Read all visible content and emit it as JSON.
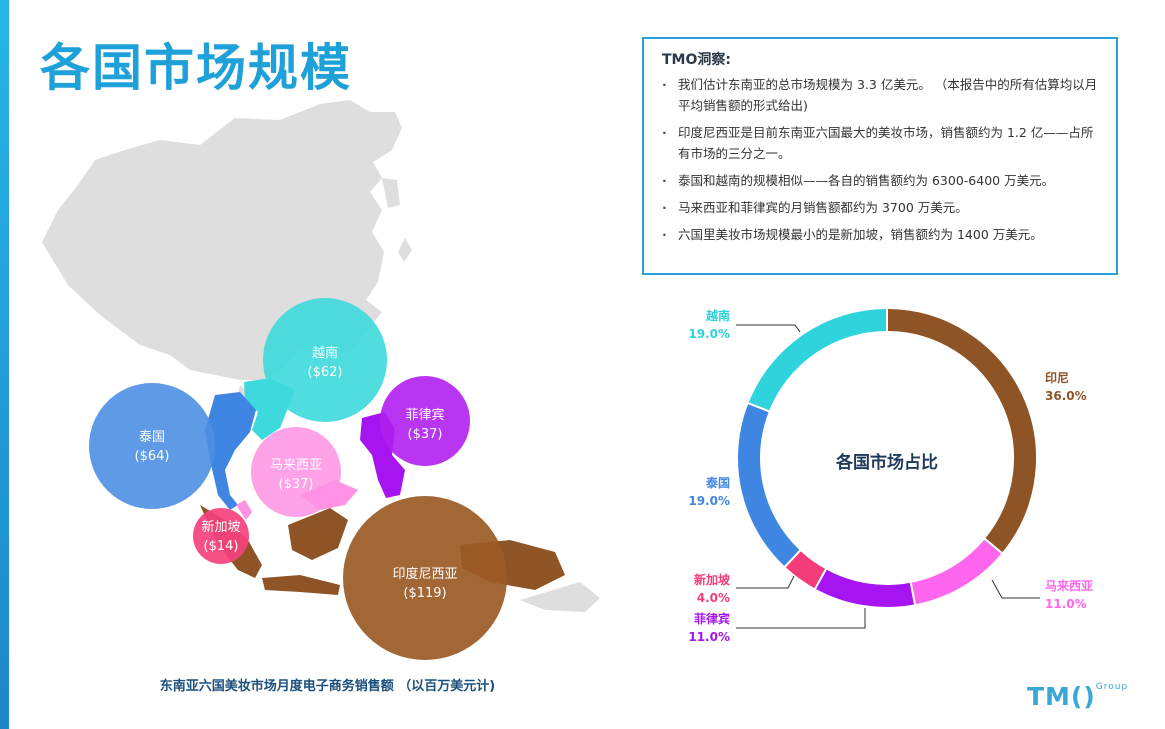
{
  "page": {
    "title": "各国市场规模"
  },
  "map": {
    "caption": "东南亚六国美妆市场月度电子商务销售额 （以百万美元计)",
    "bubbles": [
      {
        "name": "越南",
        "value": "($62)",
        "color": "#3dd9dc"
      },
      {
        "name": "泰国",
        "value": "($64)",
        "color": "#4c8fe3"
      },
      {
        "name": "菲律宾",
        "value": "($37)",
        "color": "#b01ff0"
      },
      {
        "name": "马来西亚",
        "value": "($37)",
        "color": "#ff92e4"
      },
      {
        "name": "新加坡",
        "value": "($14)",
        "color": "#f5417c"
      },
      {
        "name": "印度尼西亚",
        "value": "($119)",
        "color": "#9b5a25"
      }
    ]
  },
  "insights": {
    "title": "TMO洞察:",
    "items": [
      "我们估计东南亚的总市场规模为 3.3 亿美元。 （本报告中的所有估算均以月平均销售额的形式给出)",
      "印度尼西亚是目前东南亚六国最大的美妆市场，销售额约为 1.2 亿——占所有市场的三分之一。",
      "泰国和越南的规模相似——各自的销售额约为 6300-6400 万美元。",
      "马来西亚和菲律宾的月销售额都约为 3700 万美元。",
      "六国里美妆市场规模最小的是新加坡，销售额约为 1400 万美元。"
    ]
  },
  "chart_data": {
    "type": "pie",
    "donut": true,
    "center_label": "各国市场占比",
    "slices": [
      {
        "name": "印尼",
        "value": 36.0,
        "label": "36.0%",
        "color": "#8f5426"
      },
      {
        "name": "马来西亚",
        "value": 11.0,
        "label": "11.0%",
        "color": "#ff66ee"
      },
      {
        "name": "菲律宾",
        "value": 11.0,
        "label": "11.0%",
        "color": "#a614f2"
      },
      {
        "name": "新加坡",
        "value": 4.0,
        "label": "4.0%",
        "color": "#f53c7b"
      },
      {
        "name": "泰国",
        "value": 19.0,
        "label": "19.0%",
        "color": "#3f86e3"
      },
      {
        "name": "越南",
        "value": 19.0,
        "label": "19.0%",
        "color": "#2ed3dc"
      }
    ]
  },
  "logo": {
    "main": "TM()",
    "sub": "Group"
  }
}
